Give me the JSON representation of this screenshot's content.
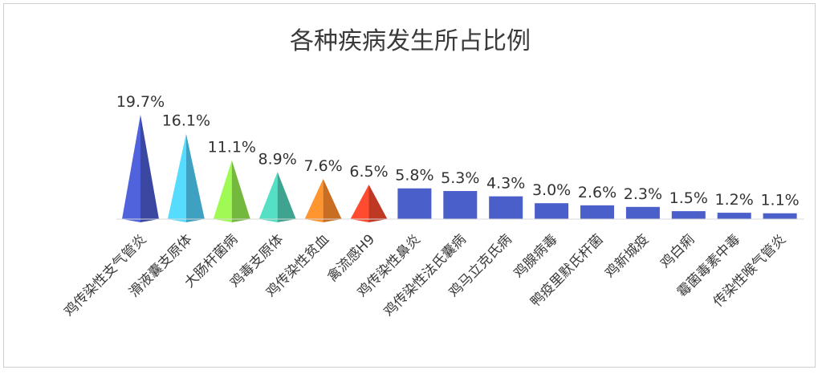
{
  "chart_data": {
    "type": "bar",
    "title": "各种疾病发生所占比例",
    "xlabel": "",
    "ylabel": "",
    "ylim": [
      0,
      20
    ],
    "value_suffix": "%",
    "categories": [
      "鸡传染性支气管炎",
      "滑液囊支原体",
      "大肠杆菌病",
      "鸡毒支原体",
      "鸡传染性贫血",
      "禽流感H9",
      "鸡传染性鼻炎",
      "鸡传染性法氏囊病",
      "鸡马立克氏病",
      "鸡腺病毒",
      "鸭疫里默氏杆菌",
      "鸡新城疫",
      "鸡白痢",
      "霉菌毒素中毒",
      "传染性喉气管炎"
    ],
    "values": [
      19.7,
      16.1,
      11.1,
      8.9,
      7.6,
      6.5,
      5.8,
      5.3,
      4.3,
      3.0,
      2.6,
      2.3,
      1.5,
      1.2,
      1.1
    ],
    "labels": [
      "19.7%",
      "16.1%",
      "11.1%",
      "8.9%",
      "7.6%",
      "6.5%",
      "5.8%",
      "5.3%",
      "4.3%",
      "3.0%",
      "2.6%",
      "2.3%",
      "1.5%",
      "1.2%",
      "1.1%"
    ],
    "mark_shapes": [
      "cone",
      "cone",
      "cone",
      "cone",
      "cone",
      "cone",
      "bar",
      "bar",
      "bar",
      "bar",
      "bar",
      "bar",
      "bar",
      "bar",
      "bar"
    ],
    "colors": [
      "#4858c4",
      "#4cc4ec",
      "#8ee04a",
      "#4cc8b0",
      "#f4852a",
      "#e8442c",
      "#4a5fc9",
      "#4a5fc9",
      "#4a5fc9",
      "#4a5fc9",
      "#4a5fc9",
      "#4a5fc9",
      "#4a5fc9",
      "#4a5fc9",
      "#4a5fc9"
    ],
    "grid": false,
    "legend": "none"
  }
}
